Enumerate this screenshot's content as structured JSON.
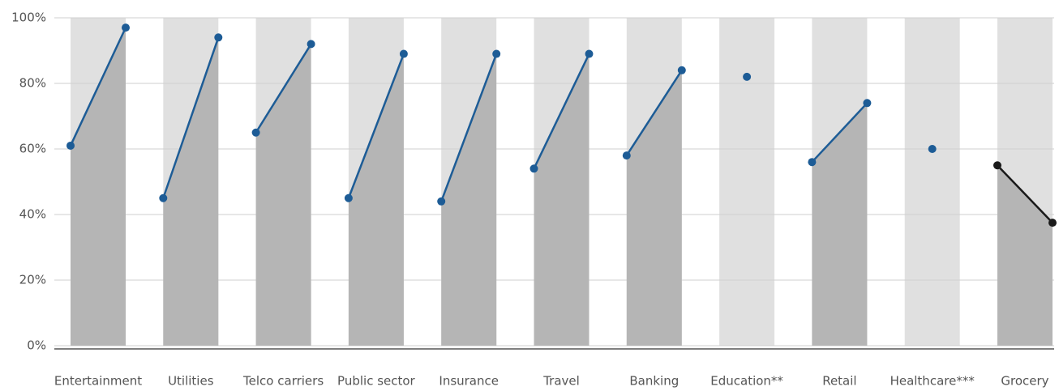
{
  "chart_data": {
    "type": "slope",
    "categories": [
      "Entertainment",
      "Utilities",
      "Telco carriers",
      "Public sector",
      "Insurance",
      "Travel",
      "Banking",
      "Education**",
      "Retail",
      "Healthcare***",
      "Grocery"
    ],
    "series": [
      {
        "values": [
          61,
          45,
          65,
          45,
          44,
          54,
          58,
          null,
          56,
          null,
          55
        ]
      },
      {
        "values": [
          97,
          94,
          92,
          89,
          89,
          89,
          84,
          82,
          74,
          60,
          37.5
        ]
      }
    ],
    "line_colors": [
      "#1d5c96",
      "#1d5c96",
      "#1d5c96",
      "#1d5c96",
      "#1d5c96",
      "#1d5c96",
      "#1d5c96",
      "#1d5c96",
      "#1d5c96",
      "#1d5c96",
      "#1a1a1a"
    ],
    "ylim": [
      0,
      100
    ],
    "yticks": [
      {
        "value": 0,
        "label": "0%"
      },
      {
        "value": 20,
        "label": "20%"
      },
      {
        "value": 40,
        "label": "40%"
      },
      {
        "value": 60,
        "label": "60%"
      },
      {
        "value": 80,
        "label": "80%"
      },
      {
        "value": 100,
        "label": "100%"
      }
    ],
    "grid": true
  }
}
